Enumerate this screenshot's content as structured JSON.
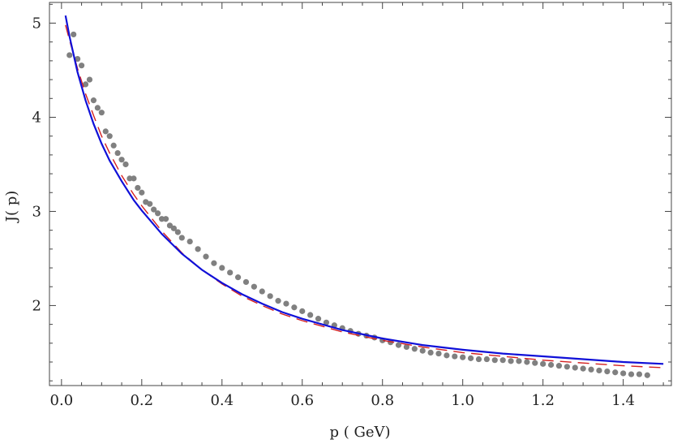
{
  "chart_data": {
    "type": "scatter",
    "title": "",
    "xlabel": "p ( GeV)",
    "ylabel": "J( p)",
    "xlim": [
      -0.03,
      1.52
    ],
    "ylim": [
      1.15,
      5.22
    ],
    "x_ticks": [
      0.0,
      0.2,
      0.4,
      0.6,
      0.8,
      1.0,
      1.2,
      1.4
    ],
    "x_tick_labels": [
      "0.0",
      "0.2",
      "0.4",
      "0.6",
      "0.8",
      "1.0",
      "1.2",
      "1.4"
    ],
    "y_ticks": [
      2,
      3,
      4,
      5
    ],
    "y_tick_labels": [
      "2",
      "3",
      "4",
      "5"
    ],
    "grid": false,
    "legend": "none",
    "series": [
      {
        "kind": "scatter",
        "color": "#808080",
        "x": [
          0.02,
          0.03,
          0.04,
          0.05,
          0.06,
          0.07,
          0.08,
          0.09,
          0.1,
          0.11,
          0.12,
          0.13,
          0.14,
          0.15,
          0.16,
          0.17,
          0.18,
          0.19,
          0.2,
          0.21,
          0.22,
          0.23,
          0.24,
          0.25,
          0.26,
          0.27,
          0.28,
          0.29,
          0.3,
          0.32,
          0.34,
          0.36,
          0.38,
          0.4,
          0.42,
          0.44,
          0.46,
          0.48,
          0.5,
          0.52,
          0.54,
          0.56,
          0.58,
          0.6,
          0.62,
          0.64,
          0.66,
          0.68,
          0.7,
          0.72,
          0.74,
          0.76,
          0.78,
          0.8,
          0.82,
          0.84,
          0.86,
          0.88,
          0.9,
          0.92,
          0.94,
          0.96,
          0.98,
          1.0,
          1.02,
          1.04,
          1.06,
          1.08,
          1.1,
          1.12,
          1.14,
          1.16,
          1.18,
          1.2,
          1.22,
          1.24,
          1.26,
          1.28,
          1.3,
          1.32,
          1.34,
          1.36,
          1.38,
          1.4,
          1.42,
          1.44,
          1.46
        ],
        "y": [
          4.66,
          4.88,
          4.62,
          4.55,
          4.35,
          4.4,
          4.18,
          4.1,
          4.05,
          3.85,
          3.8,
          3.7,
          3.62,
          3.55,
          3.5,
          3.35,
          3.35,
          3.25,
          3.2,
          3.1,
          3.08,
          3.02,
          2.98,
          2.92,
          2.92,
          2.85,
          2.82,
          2.78,
          2.72,
          2.68,
          2.6,
          2.52,
          2.45,
          2.4,
          2.35,
          2.3,
          2.25,
          2.2,
          2.15,
          2.1,
          2.05,
          2.02,
          1.98,
          1.94,
          1.9,
          1.86,
          1.82,
          1.79,
          1.76,
          1.73,
          1.7,
          1.68,
          1.66,
          1.63,
          1.61,
          1.58,
          1.56,
          1.54,
          1.52,
          1.5,
          1.49,
          1.47,
          1.46,
          1.45,
          1.44,
          1.43,
          1.43,
          1.42,
          1.42,
          1.41,
          1.41,
          1.4,
          1.39,
          1.38,
          1.37,
          1.36,
          1.35,
          1.34,
          1.33,
          1.32,
          1.31,
          1.3,
          1.29,
          1.28,
          1.27,
          1.27,
          1.26
        ]
      },
      {
        "kind": "line",
        "style": "dashed",
        "color": "#d42020",
        "x": [
          0.01,
          0.02,
          0.04,
          0.06,
          0.08,
          0.1,
          0.12,
          0.15,
          0.18,
          0.2,
          0.25,
          0.3,
          0.35,
          0.4,
          0.45,
          0.5,
          0.55,
          0.6,
          0.7,
          0.8,
          0.9,
          1.0,
          1.1,
          1.2,
          1.3,
          1.4,
          1.5
        ],
        "y": [
          4.98,
          4.82,
          4.52,
          4.25,
          4.02,
          3.8,
          3.62,
          3.38,
          3.18,
          3.06,
          2.79,
          2.56,
          2.38,
          2.23,
          2.1,
          2.0,
          1.91,
          1.84,
          1.72,
          1.63,
          1.56,
          1.5,
          1.46,
          1.42,
          1.39,
          1.36,
          1.34
        ]
      },
      {
        "kind": "line",
        "style": "solid",
        "color": "#1010d8",
        "x": [
          0.01,
          0.02,
          0.04,
          0.06,
          0.08,
          0.1,
          0.12,
          0.15,
          0.18,
          0.2,
          0.25,
          0.3,
          0.35,
          0.4,
          0.45,
          0.5,
          0.55,
          0.6,
          0.7,
          0.8,
          0.9,
          1.0,
          1.1,
          1.2,
          1.3,
          1.4,
          1.5
        ],
        "y": [
          5.08,
          4.86,
          4.48,
          4.18,
          3.93,
          3.72,
          3.54,
          3.32,
          3.12,
          3.01,
          2.76,
          2.55,
          2.38,
          2.24,
          2.12,
          2.02,
          1.93,
          1.86,
          1.74,
          1.65,
          1.58,
          1.53,
          1.49,
          1.46,
          1.43,
          1.4,
          1.38
        ]
      }
    ]
  }
}
